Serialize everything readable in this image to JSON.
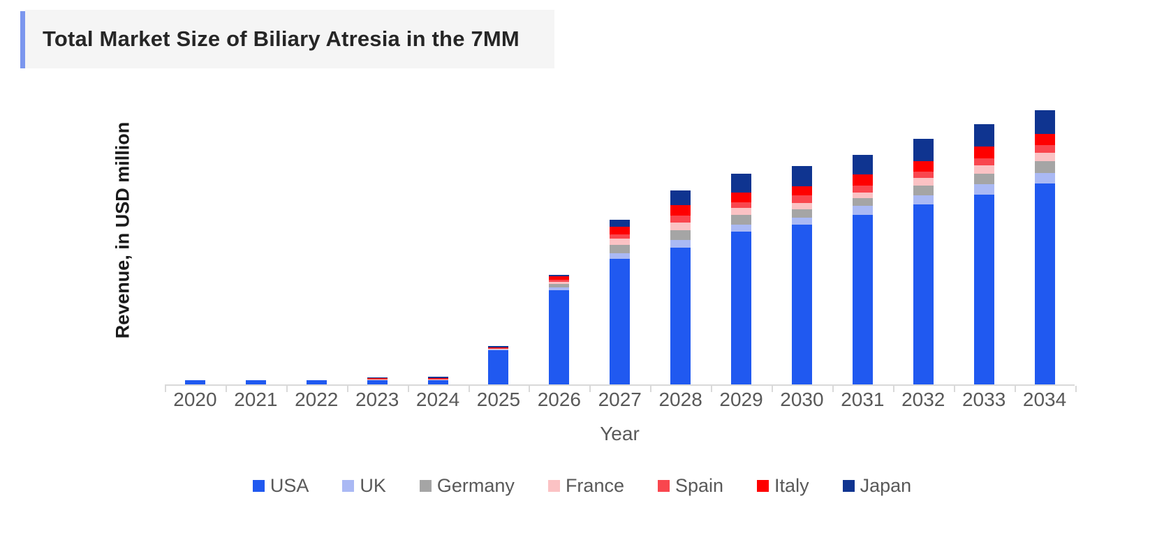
{
  "header": {
    "title": "Total Market Size of Biliary Atresia in the 7MM"
  },
  "colors": {
    "title_accent": "#7b96ee",
    "title_panel_bg": "#f5f5f5",
    "title_text": "#262626",
    "axis": "#d9d9d9",
    "tick_label": "#595959",
    "legend_text": "#595959"
  },
  "chart_data": {
    "type": "bar",
    "stacked": true,
    "title": "Total Market Size of Biliary Atresia in the 7MM",
    "xlabel": "Year",
    "ylabel": "Revenue, in USD million",
    "categories": [
      2020,
      2021,
      2022,
      2023,
      2024,
      2025,
      2026,
      2027,
      2028,
      2029,
      2030,
      2031,
      2032,
      2033,
      2034
    ],
    "series": [
      {
        "name": "USA",
        "color": "#2059f0",
        "values": [
          6.5,
          6.5,
          6,
          6.5,
          6.5,
          50,
          135,
          180,
          196,
          219,
          229,
          243,
          258,
          272,
          288
        ]
      },
      {
        "name": "UK",
        "color": "#aab9f4",
        "values": [
          0,
          0,
          0,
          0.2,
          0.2,
          0.4,
          4,
          8,
          11,
          10,
          10,
          13,
          13,
          15,
          15
        ]
      },
      {
        "name": "Germany",
        "color": "#a5a5a5",
        "values": [
          0,
          0,
          0,
          0.2,
          0.3,
          0.4,
          5,
          12,
          14,
          14,
          12,
          11,
          14,
          15,
          17
        ]
      },
      {
        "name": "France",
        "color": "#fbc2c4",
        "values": [
          0,
          0,
          0,
          0.3,
          0.4,
          0.6,
          3,
          9,
          11,
          10,
          9,
          8,
          11,
          12,
          12
        ]
      },
      {
        "name": "Spain",
        "color": "#f9464e",
        "values": [
          0,
          0,
          0,
          0.6,
          0.7,
          0.7,
          3,
          6,
          10,
          8,
          11,
          10,
          9,
          10,
          11
        ]
      },
      {
        "name": "Italy",
        "color": "#fe0000",
        "values": [
          0,
          0,
          0,
          1.2,
          1.3,
          0.9,
          5,
          11,
          15,
          14,
          13,
          16,
          15,
          17,
          16
        ]
      },
      {
        "name": "Japan",
        "color": "#0f3490",
        "values": [
          0,
          0,
          0,
          1.4,
          1.6,
          2.5,
          2.5,
          10,
          21,
          27,
          29,
          28,
          32,
          32,
          34
        ]
      }
    ],
    "ylim": [
      0,
      420
    ],
    "y_axis_numeric_labels": false,
    "grid": false,
    "legend_position": "bottom",
    "units_note": "No numeric y-axis tick labels are shown in the source; series values are approximate relative units estimated from bar pixel heights."
  }
}
